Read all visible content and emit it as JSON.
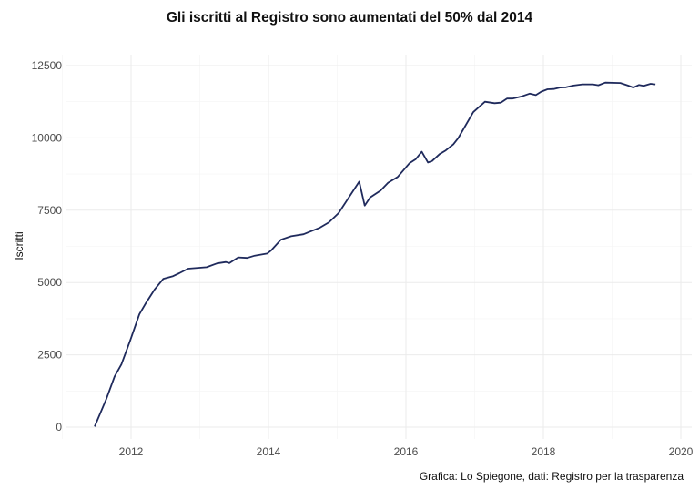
{
  "chart_data": {
    "type": "line",
    "title": "Gli iscritti al Registro sono aumentati del 50% dal 2014",
    "xlabel": "",
    "ylabel": "Iscritti",
    "caption": "Grafica: Lo Spiegone, dati: Registro per la trasparenza",
    "xlim": [
      2011.1,
      2020.1
    ],
    "ylim": [
      0,
      12500
    ],
    "x_ticks": [
      2012,
      2014,
      2016,
      2018,
      2020
    ],
    "y_ticks": [
      0,
      2500,
      5000,
      7500,
      10000,
      12500
    ],
    "grid": true,
    "line_color": "#1f2a5c",
    "series": [
      {
        "x": [
          2011.47,
          2011.64,
          2011.76,
          2011.86,
          2011.99,
          2012.12,
          2012.21,
          2012.34,
          2012.47,
          2012.61,
          2012.7,
          2012.83,
          2013.1,
          2013.25,
          2013.38,
          2013.43,
          2013.56,
          2013.69,
          2013.8,
          2013.98,
          2014.04,
          2014.18,
          2014.33,
          2014.51,
          2014.75,
          2014.88,
          2015.02,
          2015.32,
          2015.4,
          2015.48,
          2015.63,
          2015.74,
          2015.88,
          2016.05,
          2016.14,
          2016.23,
          2016.32,
          2016.38,
          2016.49,
          2016.58,
          2016.69,
          2016.76,
          2016.98,
          2017.15,
          2017.29,
          2017.38,
          2017.47,
          2017.55,
          2017.69,
          2017.8,
          2017.89,
          2017.97,
          2018.06,
          2018.15,
          2018.24,
          2018.33,
          2018.44,
          2018.57,
          2018.72,
          2018.8,
          2018.9,
          2019.12,
          2019.23,
          2019.31,
          2019.39,
          2019.46,
          2019.56,
          2019.63
        ],
        "y": [
          20,
          970,
          1750,
          2170,
          3010,
          3900,
          4270,
          4750,
          5130,
          5220,
          5320,
          5480,
          5530,
          5660,
          5710,
          5670,
          5870,
          5850,
          5930,
          6000,
          6110,
          6480,
          6600,
          6670,
          6900,
          7080,
          7400,
          8490,
          7660,
          7940,
          8180,
          8450,
          8650,
          9120,
          9260,
          9520,
          9150,
          9200,
          9440,
          9570,
          9780,
          9990,
          10890,
          11250,
          11200,
          11220,
          11360,
          11360,
          11440,
          11530,
          11480,
          11600,
          11680,
          11690,
          11740,
          11750,
          11810,
          11850,
          11850,
          11820,
          11910,
          11900,
          11810,
          11740,
          11830,
          11800,
          11870,
          11850
        ]
      }
    ]
  }
}
